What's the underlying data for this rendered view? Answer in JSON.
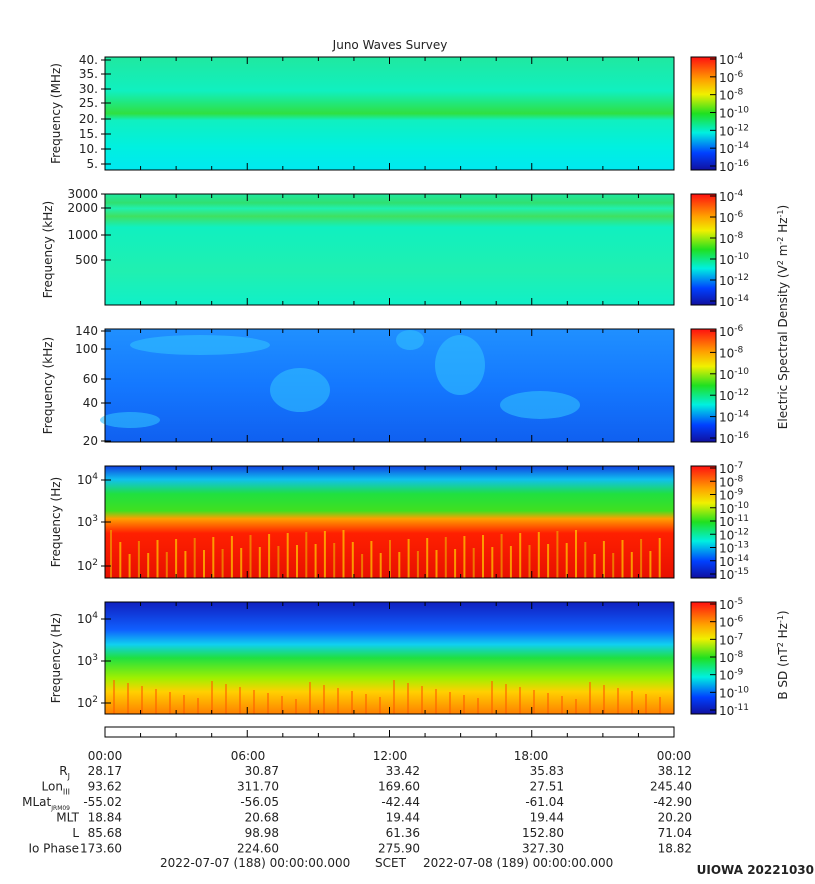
{
  "title": "Juno Waves Survey",
  "panels": [
    {
      "ylabel": "Frequency (MHz)",
      "yticks": [
        "40.",
        "35.",
        "30.",
        "25.",
        "20.",
        "15.",
        "10.",
        "5."
      ],
      "cbticks": [
        {
          "b": "10",
          "e": "-4"
        },
        {
          "b": "10",
          "e": "-6"
        },
        {
          "b": "10",
          "e": "-8"
        },
        {
          "b": "10",
          "e": "-10"
        },
        {
          "b": "10",
          "e": "-12"
        },
        {
          "b": "10",
          "e": "-14"
        },
        {
          "b": "10",
          "e": "-16"
        }
      ]
    },
    {
      "ylabel": "Frequency (kHz)",
      "yticks": [
        "3000",
        "2000",
        "1000",
        "500"
      ],
      "cbticks": [
        {
          "b": "10",
          "e": "-4"
        },
        {
          "b": "10",
          "e": "-6"
        },
        {
          "b": "10",
          "e": "-8"
        },
        {
          "b": "10",
          "e": "-10"
        },
        {
          "b": "10",
          "e": "-12"
        },
        {
          "b": "10",
          "e": "-14"
        }
      ]
    },
    {
      "ylabel": "Frequency (kHz)",
      "yticks": [
        "140",
        "100",
        "60",
        "40",
        "20"
      ],
      "cbticks": [
        {
          "b": "10",
          "e": "-6"
        },
        {
          "b": "10",
          "e": "-8"
        },
        {
          "b": "10",
          "e": "-10"
        },
        {
          "b": "10",
          "e": "-12"
        },
        {
          "b": "10",
          "e": "-14"
        },
        {
          "b": "10",
          "e": "-16"
        }
      ]
    },
    {
      "ylabel": "Frequency (Hz)",
      "yticks": [
        {
          "b": "10",
          "e": "4"
        },
        {
          "b": "10",
          "e": "3"
        },
        {
          "b": "10",
          "e": "2"
        }
      ],
      "cbticks": [
        {
          "b": "10",
          "e": "-7"
        },
        {
          "b": "10",
          "e": "-8"
        },
        {
          "b": "10",
          "e": "-9"
        },
        {
          "b": "10",
          "e": "-10"
        },
        {
          "b": "10",
          "e": "-11"
        },
        {
          "b": "10",
          "e": "-12"
        },
        {
          "b": "10",
          "e": "-13"
        },
        {
          "b": "10",
          "e": "-14"
        },
        {
          "b": "10",
          "e": "-15"
        }
      ]
    },
    {
      "ylabel": "Frequency (Hz)",
      "yticks": [
        {
          "b": "10",
          "e": "4"
        },
        {
          "b": "10",
          "e": "3"
        },
        {
          "b": "10",
          "e": "2"
        }
      ],
      "cbticks": [
        {
          "b": "10",
          "e": "-5"
        },
        {
          "b": "10",
          "e": "-6"
        },
        {
          "b": "10",
          "e": "-7"
        },
        {
          "b": "10",
          "e": "-8"
        },
        {
          "b": "10",
          "e": "-9"
        },
        {
          "b": "10",
          "e": "-10"
        },
        {
          "b": "10",
          "e": "-11"
        }
      ]
    }
  ],
  "cb_labels": [
    [
      {
        "t": "Electric Spectral Density (V"
      },
      {
        "sup": "2"
      },
      {
        "t": " m"
      },
      {
        "sup": "-2"
      },
      {
        "t": " Hz"
      },
      {
        "sup": "-1"
      },
      {
        "t": ")"
      }
    ],
    [
      {
        "t": "B SD (nT"
      },
      {
        "sup": "2"
      },
      {
        "t": " Hz"
      },
      {
        "sup": "-1"
      },
      {
        "t": ")"
      }
    ]
  ],
  "times": [
    "00:00",
    "06:00",
    "12:00",
    "18:00",
    "00:00"
  ],
  "ephemeris": [
    {
      "label": "R",
      "sub": "J",
      "values": [
        "28.17",
        "30.87",
        "33.42",
        "35.83",
        "38.12"
      ]
    },
    {
      "label": "Lon",
      "sub": "III",
      "values": [
        "93.62",
        "311.70",
        "169.60",
        "27.51",
        "245.40"
      ]
    },
    {
      "label": "MLat",
      "sub": "JRM09",
      "values": [
        "-55.02",
        "-56.05",
        "-42.44",
        "-61.04",
        "-42.90"
      ]
    },
    {
      "label": "MLT",
      "values": [
        "18.84",
        "20.68",
        "19.44",
        "19.44",
        "20.20"
      ]
    },
    {
      "label": "L",
      "values": [
        "85.68",
        "98.98",
        "61.36",
        "152.80",
        "71.04"
      ]
    },
    {
      "label": "Io Phase",
      "values": [
        "173.60",
        "224.60",
        "275.90",
        "327.30",
        "18.82"
      ]
    }
  ],
  "footer": {
    "start": "2022-07-07 (188) 00:00:00.000",
    "mid": "SCET",
    "end": "2022-07-08 (189) 00:00:00.000"
  },
  "stamp": "UIOWA 20221030"
}
